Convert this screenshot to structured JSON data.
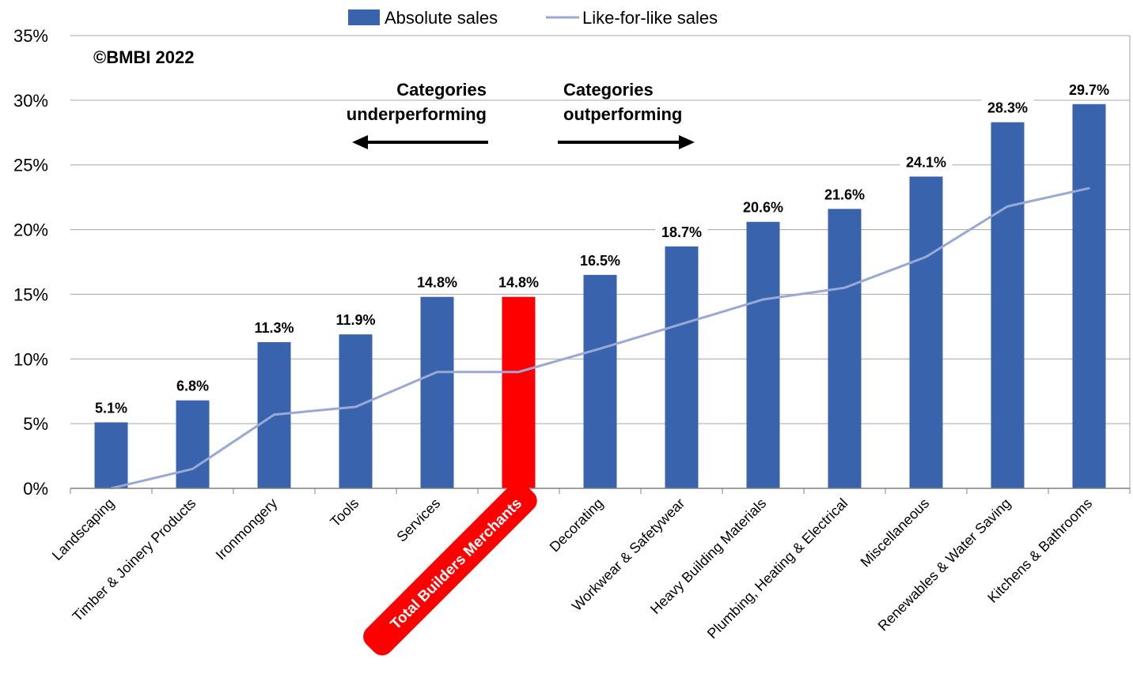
{
  "copyright": "©BMBI 2022",
  "annotations": {
    "left_line1": "Categories",
    "left_line2": "underperforming",
    "right_line1": "Categories",
    "right_line2": "outperforming"
  },
  "colors": {
    "bar": "#3a63ad",
    "highlight": "#ff0000",
    "line": "#99a9d6",
    "grid": "#a6a6a6"
  },
  "chart_data": {
    "type": "bar",
    "categories": [
      "Landscaping",
      "Timber & Joinery Products",
      "Ironmongery",
      "Tools",
      "Services",
      "Total Builders Merchants",
      "Decorating",
      "Workwear & Safetywear",
      "Heavy Building Materials",
      "Plumbing, Heating & Electrical",
      "Miscellaneous",
      "Renewables & Water Saving",
      "Kitchens & Bathrooms"
    ],
    "highlight_category": "Total Builders Merchants",
    "series": [
      {
        "name": "Absolute sales",
        "type": "bar",
        "values": [
          5.1,
          6.8,
          11.3,
          11.9,
          14.8,
          14.8,
          16.5,
          18.7,
          20.6,
          21.6,
          24.1,
          28.3,
          29.7
        ]
      },
      {
        "name": "Like-for-like sales",
        "type": "line",
        "values": [
          0.0,
          1.5,
          5.7,
          6.3,
          9.0,
          9.0,
          10.8,
          12.7,
          14.6,
          15.5,
          17.9,
          21.8,
          23.2
        ]
      }
    ],
    "data_labels": [
      "5.1%",
      "6.8%",
      "11.3%",
      "11.9%",
      "14.8%",
      "14.8%",
      "16.5%",
      "18.7%",
      "20.6%",
      "21.6%",
      "24.1%",
      "28.3%",
      "29.7%"
    ],
    "yticks": [
      "0%",
      "5%",
      "10%",
      "15%",
      "20%",
      "25%",
      "30%",
      "35%"
    ],
    "ytick_values": [
      0,
      5,
      10,
      15,
      20,
      25,
      30,
      35
    ],
    "ylim": [
      0,
      35
    ],
    "grid": true,
    "legend_position": "top"
  }
}
